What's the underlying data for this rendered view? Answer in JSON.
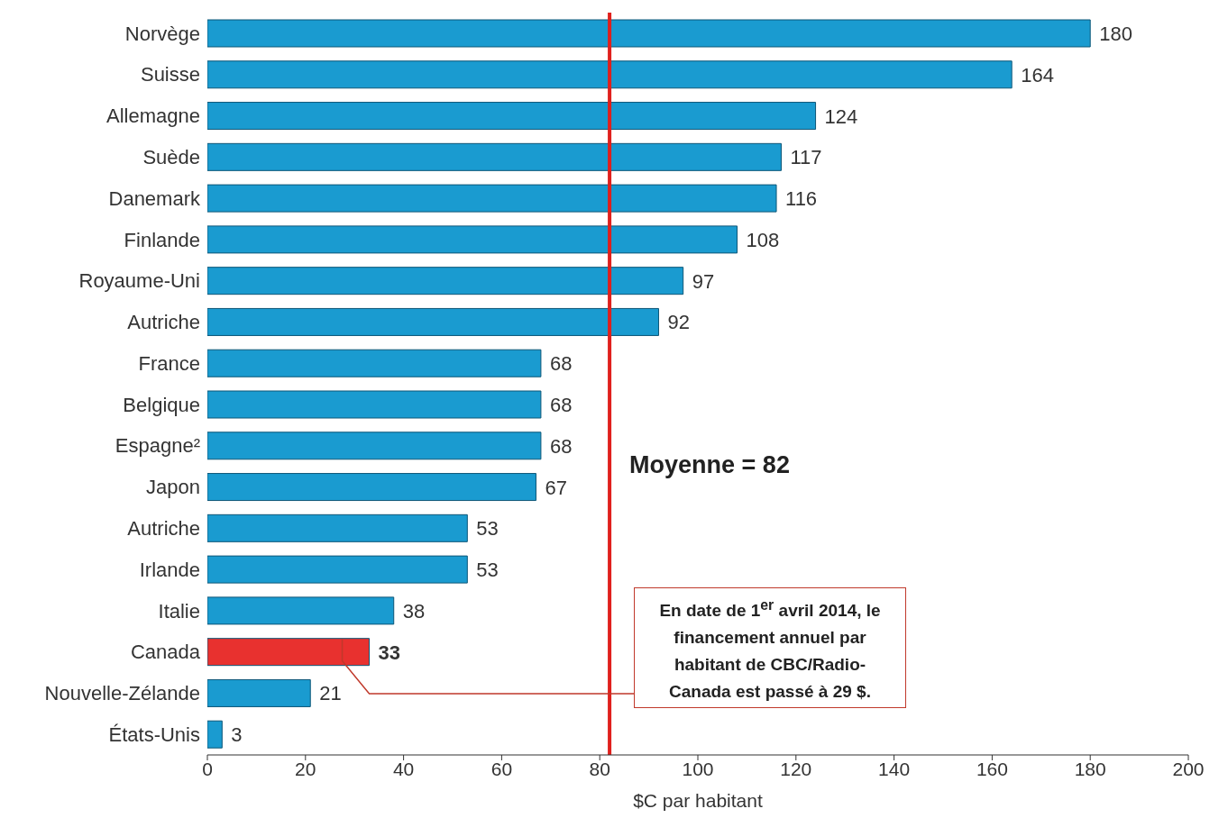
{
  "chart_data": {
    "type": "bar",
    "orientation": "horizontal",
    "xlabel": "$C par habitant",
    "categories": [
      "Norvège",
      "Suisse",
      "Allemagne",
      "Suède",
      "Danemark",
      "Finlande",
      "Royaume-Uni",
      "Autriche",
      "France",
      "Belgique",
      "Espagne²",
      "Japon",
      "Autriche",
      "Irlande",
      "Italie",
      "Canada",
      "Nouvelle-Zélande",
      "États-Unis"
    ],
    "values": [
      180,
      164,
      124,
      117,
      116,
      108,
      97,
      92,
      68,
      68,
      68,
      67,
      53,
      53,
      38,
      33,
      21,
      3
    ],
    "colors": [
      "#1a9bd0",
      "#1a9bd0",
      "#1a9bd0",
      "#1a9bd0",
      "#1a9bd0",
      "#1a9bd0",
      "#1a9bd0",
      "#1a9bd0",
      "#1a9bd0",
      "#1a9bd0",
      "#1a9bd0",
      "#1a9bd0",
      "#1a9bd0",
      "#1a9bd0",
      "#1a9bd0",
      "#e8312f",
      "#1a9bd0",
      "#1a9bd0"
    ],
    "xlim": [
      0,
      200
    ],
    "xticks": [
      0,
      20,
      40,
      60,
      80,
      100,
      120,
      140,
      160,
      180,
      200
    ],
    "data_labels": true,
    "grid": false,
    "legend": false,
    "ref_lines": [
      {
        "axis": "x",
        "value": 82,
        "label": "Moyenne = 82",
        "color": "#e0201c"
      }
    ],
    "annotations": [
      "En date de 1$^{er}$ avril 2014, le financement annuel par habitant de CBC/Radio-Canada est passé à 29 $."
    ]
  }
}
